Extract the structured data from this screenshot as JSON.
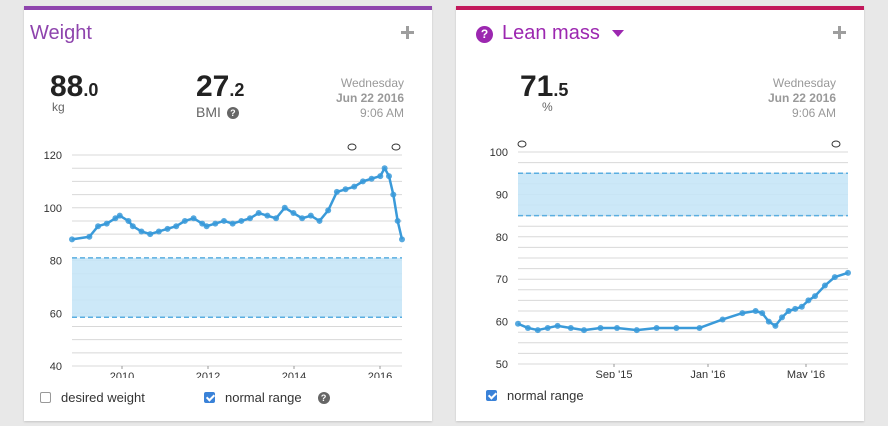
{
  "weight_card": {
    "title": "Weight",
    "weight_value_int": "88",
    "weight_value_dec": ".0",
    "weight_unit": "kg",
    "bmi_value_int": "27",
    "bmi_value_dec": ".2",
    "bmi_label": "BMI",
    "date_weekday": "Wednesday",
    "date_day": "Jun 22 2016",
    "date_time": "9:06 AM",
    "legend_desired": "desired weight",
    "legend_normal": "normal range",
    "desired_checked": false,
    "normal_checked": true
  },
  "lean_card": {
    "title": "Lean mass",
    "value_int": "71",
    "value_dec": ".5",
    "unit": "%",
    "date_weekday": "Wednesday",
    "date_day": "Jun 22 2016",
    "date_time": "9:06 AM",
    "legend_normal": "normal range",
    "normal_checked": true
  },
  "colors": {
    "line": "#3a9ad9",
    "band": "#c6e6f7",
    "band_edge": "#5aaee0",
    "weight_accent": "#8e44ad",
    "lean_accent": "#c2185b"
  },
  "icons": [
    "plus-icon",
    "help-icon",
    "caret-down-icon",
    "comment-icon",
    "checkbox-icon"
  ],
  "chart_data": [
    {
      "type": "line",
      "ylim": [
        40,
        120
      ],
      "yticks": [
        "120",
        "100",
        "80",
        "60",
        "40"
      ],
      "xticks": [
        "2010",
        "2012",
        "2014",
        "2016"
      ],
      "normal_range": [
        58.5,
        81
      ],
      "x": [
        2008.9,
        2009.3,
        2009.5,
        2009.7,
        2009.9,
        2010.0,
        2010.2,
        2010.3,
        2010.5,
        2010.7,
        2010.9,
        2011.1,
        2011.3,
        2011.5,
        2011.7,
        2011.9,
        2012.0,
        2012.2,
        2012.4,
        2012.6,
        2012.8,
        2013.0,
        2013.2,
        2013.4,
        2013.6,
        2013.8,
        2014.0,
        2014.2,
        2014.4,
        2014.6,
        2014.8,
        2015.0,
        2015.2,
        2015.4,
        2015.6,
        2015.8,
        2016.0,
        2016.1,
        2016.2,
        2016.3,
        2016.4,
        2016.5
      ],
      "values": [
        88,
        89,
        93,
        94,
        96,
        97,
        95,
        93,
        91,
        90,
        91,
        92,
        93,
        95,
        96,
        94,
        93,
        94,
        95,
        94,
        95,
        96,
        98,
        97,
        96,
        100,
        98,
        96,
        97,
        95,
        99,
        106,
        107,
        108,
        110,
        111,
        112,
        115,
        112,
        105,
        95,
        88
      ]
    },
    {
      "type": "line",
      "ylim": [
        50,
        100
      ],
      "yticks": [
        "100",
        "90",
        "80",
        "70",
        "60",
        "50"
      ],
      "xticks": [
        "Sep '15",
        "Jan '16",
        "May '16"
      ],
      "normal_range": [
        85,
        95
      ],
      "x": [
        0.0,
        0.03,
        0.06,
        0.09,
        0.12,
        0.16,
        0.2,
        0.25,
        0.3,
        0.36,
        0.42,
        0.48,
        0.55,
        0.62,
        0.68,
        0.72,
        0.74,
        0.76,
        0.78,
        0.8,
        0.82,
        0.84,
        0.86,
        0.88,
        0.9,
        0.93,
        0.96,
        1.0
      ],
      "values": [
        59.5,
        58.5,
        58.0,
        58.5,
        59.0,
        58.5,
        58.0,
        58.5,
        58.5,
        58.0,
        58.5,
        58.5,
        58.5,
        60.5,
        62.0,
        62.5,
        62.0,
        60.0,
        59.0,
        61.0,
        62.5,
        63.0,
        63.5,
        65.0,
        66.0,
        68.5,
        70.5,
        71.5
      ]
    }
  ]
}
